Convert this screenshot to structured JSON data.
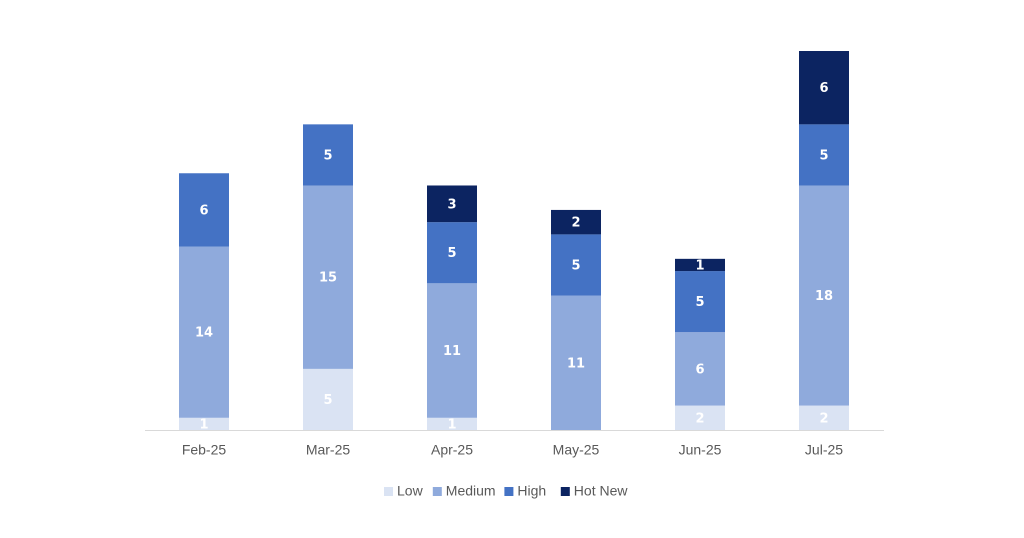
{
  "chart_data": {
    "type": "stacked_bar",
    "categories": [
      "Feb-25",
      "Mar-25",
      "Apr-25",
      "May-25",
      "Jun-25",
      "Jul-25"
    ],
    "series": [
      {
        "name": "Low",
        "color": "#dae3f3",
        "values": [
          1,
          5,
          1,
          null,
          2,
          2
        ]
      },
      {
        "name": "Medium",
        "color": "#8faadc",
        "values": [
          14,
          15,
          11,
          11,
          6,
          18
        ]
      },
      {
        "name": "High",
        "color": "#4472c4",
        "values": [
          6,
          5,
          5,
          5,
          5,
          5
        ]
      },
      {
        "name": "Hot New",
        "color": "#0c2461",
        "values": [
          null,
          null,
          3,
          2,
          1,
          6
        ]
      }
    ],
    "legend": "bottom"
  }
}
